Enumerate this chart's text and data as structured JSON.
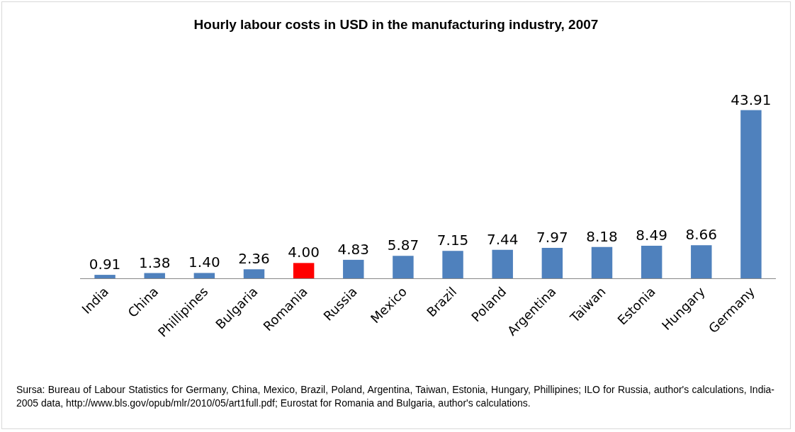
{
  "chart_data": {
    "type": "bar",
    "title": "Hourly labour costs in USD in the manufacturing industry, 2007",
    "categories": [
      "India",
      "China",
      "Phillipines",
      "Bulgaria",
      "Romania",
      "Russia",
      "Mexico",
      "Brazil",
      "Poland",
      "Argentina",
      "Taiwan",
      "Estonia",
      "Hungary",
      "Germany"
    ],
    "values": [
      0.91,
      1.38,
      1.4,
      2.36,
      4.0,
      4.83,
      5.87,
      7.15,
      7.44,
      7.97,
      8.18,
      8.49,
      8.66,
      43.91
    ],
    "value_labels": [
      "0.91",
      "1.38",
      "1.40",
      "2.36",
      "4.00",
      "4.83",
      "5.87",
      "7.15",
      "7.44",
      "7.97",
      "8.18",
      "8.49",
      "8.66",
      "43.91"
    ],
    "colors": [
      "#4f81bd",
      "#4f81bd",
      "#4f81bd",
      "#4f81bd",
      "#ff0000",
      "#4f81bd",
      "#4f81bd",
      "#4f81bd",
      "#4f81bd",
      "#4f81bd",
      "#4f81bd",
      "#4f81bd",
      "#4f81bd",
      "#4f81bd"
    ],
    "grid": false,
    "annotations": [
      "Sursa: Bureau of Labour Statistics for Germany, China, Mexico, Brazil, Poland, Argentina, Taiwan, Estonia, Hungary, Phillipines; ILO for Russia, author's calculations, India-2005 data, http://www.bls.gov/opub/mlr/2010/05/art1full.pdf; Eurostat for Romania and Bulgaria, author's calculations."
    ]
  }
}
